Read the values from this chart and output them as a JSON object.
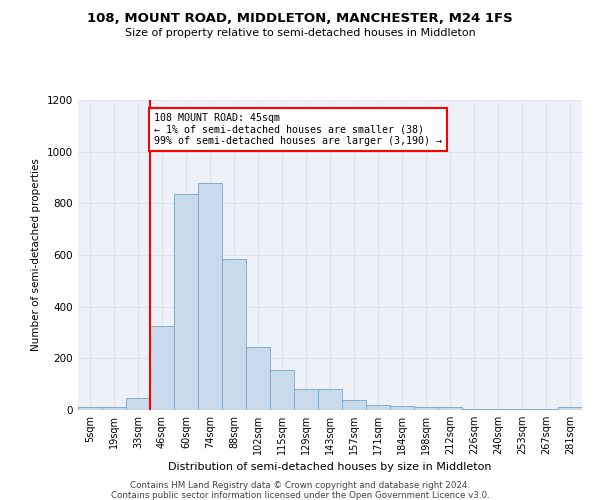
{
  "title1": "108, MOUNT ROAD, MIDDLETON, MANCHESTER, M24 1FS",
  "title2": "Size of property relative to semi-detached houses in Middleton",
  "xlabel": "Distribution of semi-detached houses by size in Middleton",
  "ylabel": "Number of semi-detached properties",
  "footer1": "Contains HM Land Registry data © Crown copyright and database right 2024.",
  "footer2": "Contains public sector information licensed under the Open Government Licence v3.0.",
  "categories": [
    "5sqm",
    "19sqm",
    "33sqm",
    "46sqm",
    "60sqm",
    "74sqm",
    "88sqm",
    "102sqm",
    "115sqm",
    "129sqm",
    "143sqm",
    "157sqm",
    "171sqm",
    "184sqm",
    "198sqm",
    "212sqm",
    "226sqm",
    "240sqm",
    "253sqm",
    "267sqm",
    "281sqm"
  ],
  "values": [
    10,
    10,
    45,
    325,
    835,
    880,
    585,
    245,
    155,
    82,
    82,
    40,
    20,
    15,
    12,
    10,
    5,
    5,
    5,
    3,
    10
  ],
  "bar_color": "#c9daea",
  "bar_edge_color": "#7aafd4",
  "grid_color": "#dde4ee",
  "bg_color": "#eef2f8",
  "red_line_index": 3,
  "annotation_text": "108 MOUNT ROAD: 45sqm\n← 1% of semi-detached houses are smaller (38)\n99% of semi-detached houses are larger (3,190) →",
  "ylim": [
    0,
    1200
  ],
  "yticks": [
    0,
    200,
    400,
    600,
    800,
    1000,
    1200
  ]
}
